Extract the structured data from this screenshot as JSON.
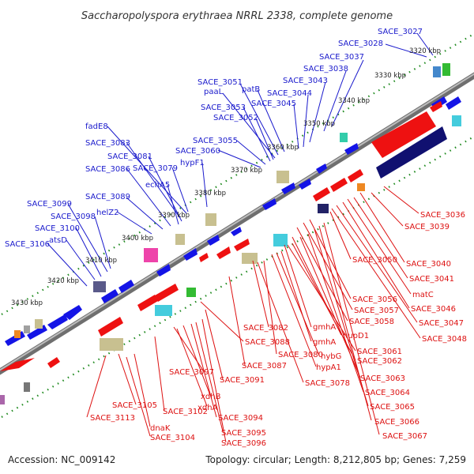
{
  "title": "Saccharopolyspora erythraea NRRL 2338, complete genome",
  "accession": "Accession: NC_009142",
  "stats": "Topology: circular; Length: 8,212,805 bp; Genes: 7,259",
  "colors": {
    "forward_label": "#1a1acc",
    "reverse_label": "#dd1111",
    "forward_gene": "#1414e6",
    "reverse_gene": "#ee1111",
    "axis": "#888888",
    "ticks": "#1f8a1f"
  },
  "kbp_ticks": [
    {
      "label": "3320 kbp"
    },
    {
      "label": "3330 kbp"
    },
    {
      "label": "3340 kbp"
    },
    {
      "label": "3350 kbp"
    },
    {
      "label": "3360 kbp"
    },
    {
      "label": "3370 kbp"
    },
    {
      "label": "3380 kbp"
    },
    {
      "label": "3390 kbp"
    },
    {
      "label": "3400 kbp"
    },
    {
      "label": "3410 kbp"
    },
    {
      "label": "3420 kbp"
    },
    {
      "label": "3430 kbp"
    }
  ],
  "forward_labels": [
    {
      "text": "SACE_3027"
    },
    {
      "text": "SACE_3028"
    },
    {
      "text": "SACE_3037"
    },
    {
      "text": "SACE_3038"
    },
    {
      "text": "SACE_3043"
    },
    {
      "text": "SACE_3051"
    },
    {
      "text": "patB"
    },
    {
      "text": "paaL"
    },
    {
      "text": "SACE_3044"
    },
    {
      "text": "SACE_3045"
    },
    {
      "text": "SACE_3053"
    },
    {
      "text": "SACE_3052"
    },
    {
      "text": "fadE8"
    },
    {
      "text": "SACE_3055"
    },
    {
      "text": "SACE_3083"
    },
    {
      "text": "SACE_3060"
    },
    {
      "text": "SACE_3081"
    },
    {
      "text": "hypF1"
    },
    {
      "text": "SACE_3086"
    },
    {
      "text": "SACE_3079"
    },
    {
      "text": "echA5"
    },
    {
      "text": "SACE_3089"
    },
    {
      "text": "SACE_3099"
    },
    {
      "text": "helZ2"
    },
    {
      "text": "SACE_3098"
    },
    {
      "text": "SACE_3100"
    },
    {
      "text": "atsD"
    },
    {
      "text": "SACE_3106"
    }
  ],
  "reverse_labels": [
    {
      "text": "SACE_3036"
    },
    {
      "text": "SACE_3039"
    },
    {
      "text": "SACE_3050"
    },
    {
      "text": "SACE_3040"
    },
    {
      "text": "SACE_3041"
    },
    {
      "text": "matC"
    },
    {
      "text": "SACE_3056"
    },
    {
      "text": "SACE_3046"
    },
    {
      "text": "SACE_3057"
    },
    {
      "text": "SACE_3058"
    },
    {
      "text": "SACE_3047"
    },
    {
      "text": "SACE_3082"
    },
    {
      "text": "gmhA"
    },
    {
      "text": "hupD1"
    },
    {
      "text": "SACE_3048"
    },
    {
      "text": "SACE_3088"
    },
    {
      "text": "gmhA"
    },
    {
      "text": "SACE_3061"
    },
    {
      "text": "SACE_3080"
    },
    {
      "text": "hybG"
    },
    {
      "text": "SACE_3062"
    },
    {
      "text": "SACE_3087"
    },
    {
      "text": "hypA1"
    },
    {
      "text": "SACE_3097"
    },
    {
      "text": "SACE_3063"
    },
    {
      "text": "SACE_3091"
    },
    {
      "text": "SACE_3078"
    },
    {
      "text": "xdhB"
    },
    {
      "text": "SACE_3064"
    },
    {
      "text": "xdhA"
    },
    {
      "text": "SACE_3105"
    },
    {
      "text": "SACE_3065"
    },
    {
      "text": "SACE_3102"
    },
    {
      "text": "SACE_3113"
    },
    {
      "text": "SACE_3094"
    },
    {
      "text": "SACE_3066"
    },
    {
      "text": "dnaK"
    },
    {
      "text": "SACE_3095"
    },
    {
      "text": "SACE_3104"
    },
    {
      "text": "SACE_3096"
    },
    {
      "text": "SACE_3067"
    }
  ]
}
